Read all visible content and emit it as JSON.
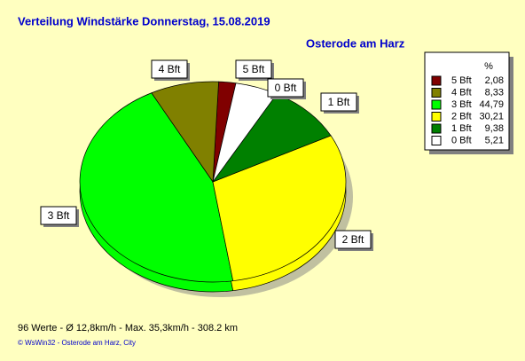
{
  "chart_data": {
    "type": "pie",
    "title": "Verteilung Windstärke  Donnerstag, 15.08.2019",
    "subtitle": "Osterode am Harz",
    "legend_header": "%",
    "categories": [
      "5 Bft",
      "4 Bft",
      "3 Bft",
      "2 Bft",
      "1 Bft",
      "0 Bft"
    ],
    "values": [
      2.08,
      8.33,
      44.79,
      30.21,
      9.38,
      5.21
    ],
    "value_labels": [
      "2,08",
      "8,33",
      "44,79",
      "30,21",
      "9,38",
      "5,21"
    ],
    "colors": [
      "#800000",
      "#808000",
      "#00ff00",
      "#ffff00",
      "#008000",
      "#ffffff"
    ],
    "notes": [
      "96 Werte   -   Ø 12,8km/h   -   Max. 35,3km/h   -   308.2 km",
      "© WsWin32  -  Osterode am Harz, City"
    ]
  }
}
